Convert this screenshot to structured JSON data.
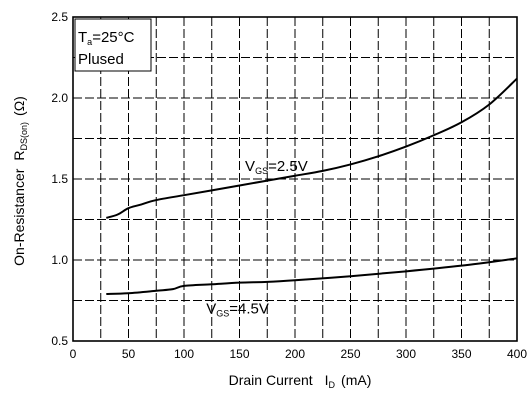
{
  "chart_data": {
    "type": "line",
    "x_axis": {
      "label_prefix": "Drain Current",
      "label_symbol": "I",
      "label_symbol_sub": "D",
      "label_unit": "(mA)",
      "range": [
        0,
        400
      ],
      "ticks": [
        "0",
        "50",
        "100",
        "150",
        "200",
        "250",
        "300",
        "350",
        "400"
      ]
    },
    "y_axis": {
      "label_prefix": "On-Resistancer",
      "label_symbol": "R",
      "label_symbol_sub": "DS(on)",
      "label_unit": "(Ω)",
      "range": [
        0.5,
        2.5
      ],
      "ticks": [
        "0.5",
        "1.0",
        "1.5",
        "2.0",
        "2.5"
      ]
    },
    "grid": true,
    "conditions": {
      "line1_main": "T",
      "line1_sub": "a",
      "line1_rest": "=25°C",
      "line2": "Plused"
    },
    "series": [
      {
        "name_main": "V",
        "name_sub": "GS",
        "name_rest": "=2.5V",
        "x": [
          30,
          40,
          50,
          60,
          75,
          100,
          125,
          150,
          175,
          200,
          225,
          250,
          275,
          300,
          325,
          350,
          375,
          400
        ],
        "y": [
          1.26,
          1.28,
          1.32,
          1.34,
          1.37,
          1.4,
          1.43,
          1.46,
          1.49,
          1.52,
          1.55,
          1.59,
          1.64,
          1.7,
          1.77,
          1.85,
          1.96,
          2.12
        ]
      },
      {
        "name_main": "V",
        "name_sub": "GS",
        "name_rest": "=4.5V",
        "x": [
          30,
          50,
          75,
          90,
          100,
          125,
          150,
          175,
          200,
          250,
          300,
          350,
          400
        ],
        "y": [
          0.79,
          0.795,
          0.81,
          0.82,
          0.84,
          0.85,
          0.86,
          0.865,
          0.875,
          0.9,
          0.93,
          0.965,
          1.01
        ]
      }
    ]
  }
}
